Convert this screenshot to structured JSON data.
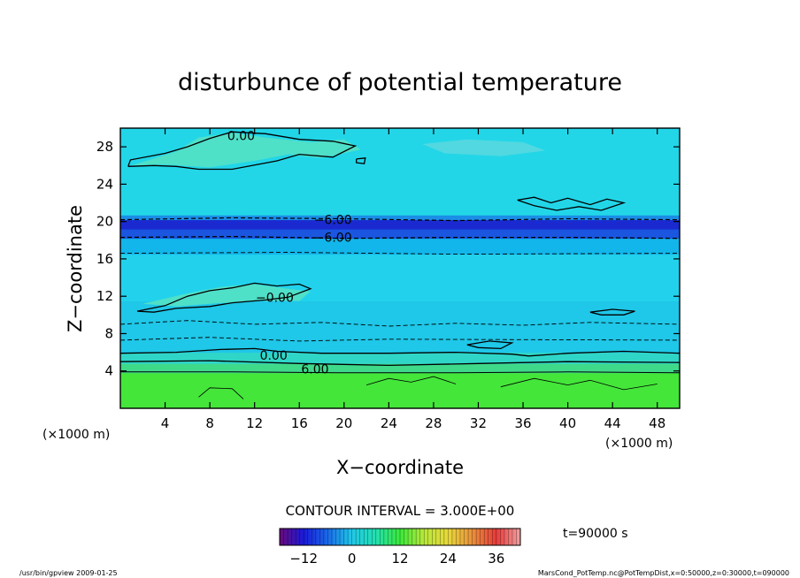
{
  "chart_data": {
    "type": "heatmap",
    "title": "disturbunce of potential temperature",
    "xlabel": "X−coordinate",
    "ylabel": "Z−coordinate",
    "x_unit_left": "(×1000 m)",
    "x_unit_right": "(×1000 m)",
    "xlim": [
      0,
      50
    ],
    "ylim": [
      0,
      30
    ],
    "xticks": [
      4,
      8,
      12,
      16,
      20,
      24,
      28,
      32,
      36,
      40,
      44,
      48
    ],
    "yticks": [
      4,
      8,
      12,
      16,
      20,
      24,
      28
    ],
    "bands": [
      {
        "z0": 0.0,
        "z1": 3.8,
        "value": 7.5,
        "color": "#44e63a"
      },
      {
        "z0": 3.8,
        "z1": 4.8,
        "value": 6.0,
        "color": "#3fd98a"
      },
      {
        "z0": 4.8,
        "z1": 6.0,
        "value": 2.5,
        "color": "#2fd6c8"
      },
      {
        "z0": 6.0,
        "z1": 11.5,
        "value": -2.5,
        "color": "#1fc7e8"
      },
      {
        "z0": 11.5,
        "z1": 16.5,
        "value": -1.5,
        "color": "#22d2ec"
      },
      {
        "z0": 16.5,
        "z1": 18.2,
        "value": -4.0,
        "color": "#12b6ea"
      },
      {
        "z0": 18.2,
        "z1": 19.2,
        "value": -8.0,
        "color": "#1a56e0"
      },
      {
        "z0": 19.2,
        "z1": 20.2,
        "value": -10.5,
        "color": "#1a2ad0"
      },
      {
        "z0": 20.2,
        "z1": 20.7,
        "value": -5.0,
        "color": "#1b8ee6"
      },
      {
        "z0": 20.7,
        "z1": 30.0,
        "value": -1.0,
        "color": "#22d6e8"
      }
    ],
    "contour_labels": [
      {
        "text": "0.00",
        "x": 10.8,
        "z": 29.2
      },
      {
        "text": "−6.00",
        "x": 19.0,
        "z": 20.2
      },
      {
        "text": "−6.00",
        "x": 19.0,
        "z": 18.3
      },
      {
        "text": "−0.00",
        "x": 13.8,
        "z": 11.9
      },
      {
        "text": "0.00",
        "x": 13.7,
        "z": 5.7
      },
      {
        "text": "6.00",
        "x": 17.4,
        "z": 4.2
      }
    ],
    "contour_interval_text": "CONTOUR INTERVAL = 3.000E+00",
    "time_text": "t=90000  s",
    "colorbar": {
      "min": -18,
      "max": 42,
      "ticks": [
        -12,
        0,
        12,
        24,
        36
      ],
      "stops": [
        "#6a0a7a",
        "#1a1ad8",
        "#1a6ae8",
        "#20c8e8",
        "#22e0b0",
        "#3ae83a",
        "#b8e83a",
        "#e8d83a",
        "#e8903a",
        "#e83a3a",
        "#f0a0a0"
      ]
    },
    "grid": false
  },
  "footer": {
    "left": "/usr/bin/gpview   2009-01-25",
    "right": "MarsCond_PotTemp.nc@PotTempDist,x=0:50000,z=0:30000,t=090000"
  }
}
